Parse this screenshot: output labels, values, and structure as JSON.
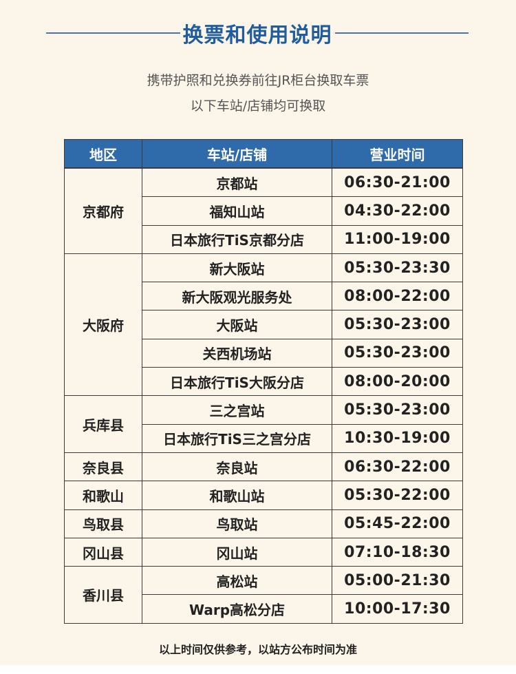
{
  "title": "换票和使用说明",
  "subtitle_1": "携带护照和兑换券前往JR柜台换取车票",
  "subtitle_2": "以下车站/店铺均可换取",
  "colors": {
    "header_bg": "#2f6aab",
    "title": "#215d9c",
    "page_bg": "#fcf6ea"
  },
  "table": {
    "headers": [
      "地区",
      "车站/店铺",
      "营业时间"
    ],
    "groups": [
      {
        "region": "京都府",
        "rows": [
          [
            "京都站",
            "06:30-21:00"
          ],
          [
            "福知山站",
            "04:30-22:00"
          ],
          [
            "日本旅行TiS京都分店",
            "11:00-19:00"
          ]
        ]
      },
      {
        "region": "大阪府",
        "rows": [
          [
            "新大阪站",
            "05:30-23:30"
          ],
          [
            "新大阪观光服务处",
            "08:00-22:00"
          ],
          [
            "大阪站",
            "05:30-23:00"
          ],
          [
            "关西机场站",
            "05:30-23:00"
          ],
          [
            "日本旅行TiS大阪分店",
            "08:00-20:00"
          ]
        ]
      },
      {
        "region": "兵库县",
        "rows": [
          [
            "三之宫站",
            "05:30-23:00"
          ],
          [
            "日本旅行TiS三之宫分店",
            "10:30-19:00"
          ]
        ]
      },
      {
        "region": "奈良县",
        "rows": [
          [
            "奈良站",
            "06:30-22:00"
          ]
        ]
      },
      {
        "region": "和歌山",
        "rows": [
          [
            "和歌山站",
            "05:30-22:00"
          ]
        ]
      },
      {
        "region": "鸟取县",
        "rows": [
          [
            "鸟取站",
            "05:45-22:00"
          ]
        ]
      },
      {
        "region": "冈山县",
        "rows": [
          [
            "冈山站",
            "07:10-18:30"
          ]
        ]
      },
      {
        "region": "香川县",
        "rows": [
          [
            "高松站",
            "05:00-21:30"
          ],
          [
            "Warp高松分店",
            "10:00-17:30"
          ]
        ]
      }
    ]
  },
  "footnote": "以上时间仅供参考，以站方公布时间为准"
}
